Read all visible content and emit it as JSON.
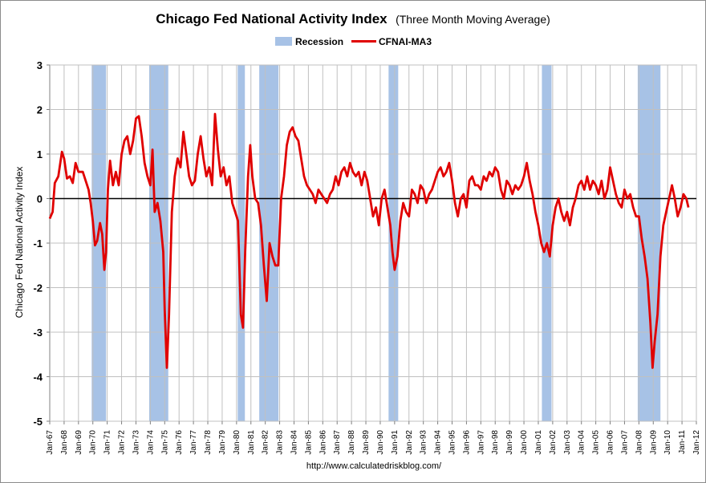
{
  "chart_data": {
    "type": "line",
    "title": "Chicago Fed National Activity Index",
    "subtitle": "(Three Month Moving Average)",
    "ylabel": "Chicago Fed National Activity Index",
    "xlabel": "",
    "source": "http://www.calculatedriskblog.com/",
    "ylim": [
      -5,
      3
    ],
    "yticks": [
      3,
      2,
      1,
      0,
      -1,
      -2,
      -3,
      -4,
      -5
    ],
    "xlim": [
      1967,
      2012
    ],
    "x_tick_labels": [
      "Jan-67",
      "Jan-68",
      "Jan-69",
      "Jan-70",
      "Jan-71",
      "Jan-72",
      "Jan-73",
      "Jan-74",
      "Jan-75",
      "Jan-76",
      "Jan-77",
      "Jan-78",
      "Jan-79",
      "Jan-80",
      "Jan-81",
      "Jan-82",
      "Jan-83",
      "Jan-84",
      "Jan-85",
      "Jan-86",
      "Jan-87",
      "Jan-88",
      "Jan-89",
      "Jan-90",
      "Jan-91",
      "Jan-92",
      "Jan-93",
      "Jan-94",
      "Jan-95",
      "Jan-96",
      "Jan-97",
      "Jan-98",
      "Jan-99",
      "Jan-00",
      "Jan-01",
      "Jan-02",
      "Jan-03",
      "Jan-04",
      "Jan-05",
      "Jan-06",
      "Jan-07",
      "Jan-08",
      "Jan-09",
      "Jan-10",
      "Jan-11",
      "Jan-12"
    ],
    "grid": true,
    "legend_position": "top-center",
    "legend": [
      {
        "name": "Recession",
        "kind": "area",
        "color": "#a7c2e6"
      },
      {
        "name": "CFNAI-MA3",
        "kind": "line",
        "color": "#e00000"
      }
    ],
    "recessions": [
      {
        "start": 1969.92,
        "end": 1970.92
      },
      {
        "start": 1973.92,
        "end": 1975.25
      },
      {
        "start": 1980.08,
        "end": 1980.58
      },
      {
        "start": 1981.58,
        "end": 1982.92
      },
      {
        "start": 1990.58,
        "end": 1991.25
      },
      {
        "start": 2001.25,
        "end": 2001.92
      },
      {
        "start": 2007.92,
        "end": 2009.5
      }
    ],
    "series": [
      {
        "name": "CFNAI-MA3",
        "color": "#e00000",
        "points": [
          [
            1967.0,
            -0.45
          ],
          [
            1967.2,
            -0.3
          ],
          [
            1967.35,
            0.35
          ],
          [
            1967.6,
            0.5
          ],
          [
            1967.85,
            1.05
          ],
          [
            1968.0,
            0.9
          ],
          [
            1968.2,
            0.45
          ],
          [
            1968.4,
            0.5
          ],
          [
            1968.6,
            0.35
          ],
          [
            1968.8,
            0.8
          ],
          [
            1969.0,
            0.6
          ],
          [
            1969.3,
            0.6
          ],
          [
            1969.5,
            0.4
          ],
          [
            1969.7,
            0.2
          ],
          [
            1969.85,
            -0.1
          ],
          [
            1970.0,
            -0.5
          ],
          [
            1970.15,
            -1.05
          ],
          [
            1970.3,
            -0.95
          ],
          [
            1970.5,
            -0.55
          ],
          [
            1970.65,
            -0.8
          ],
          [
            1970.8,
            -1.6
          ],
          [
            1970.92,
            -1.2
          ],
          [
            1971.05,
            0.2
          ],
          [
            1971.2,
            0.85
          ],
          [
            1971.4,
            0.3
          ],
          [
            1971.6,
            0.6
          ],
          [
            1971.8,
            0.3
          ],
          [
            1972.0,
            1.0
          ],
          [
            1972.2,
            1.3
          ],
          [
            1972.4,
            1.4
          ],
          [
            1972.6,
            1.0
          ],
          [
            1972.8,
            1.3
          ],
          [
            1973.0,
            1.8
          ],
          [
            1973.2,
            1.85
          ],
          [
            1973.4,
            1.4
          ],
          [
            1973.6,
            0.8
          ],
          [
            1973.8,
            0.5
          ],
          [
            1974.0,
            0.3
          ],
          [
            1974.15,
            1.1
          ],
          [
            1974.3,
            -0.3
          ],
          [
            1974.5,
            -0.1
          ],
          [
            1974.7,
            -0.5
          ],
          [
            1974.9,
            -1.2
          ],
          [
            1975.0,
            -2.5
          ],
          [
            1975.15,
            -3.8
          ],
          [
            1975.3,
            -2.6
          ],
          [
            1975.5,
            -0.3
          ],
          [
            1975.7,
            0.5
          ],
          [
            1975.9,
            0.9
          ],
          [
            1976.1,
            0.7
          ],
          [
            1976.3,
            1.5
          ],
          [
            1976.5,
            1.0
          ],
          [
            1976.7,
            0.5
          ],
          [
            1976.9,
            0.3
          ],
          [
            1977.1,
            0.4
          ],
          [
            1977.3,
            1.0
          ],
          [
            1977.5,
            1.4
          ],
          [
            1977.7,
            0.9
          ],
          [
            1977.9,
            0.5
          ],
          [
            1978.1,
            0.7
          ],
          [
            1978.3,
            0.3
          ],
          [
            1978.5,
            1.9
          ],
          [
            1978.7,
            1.1
          ],
          [
            1978.9,
            0.5
          ],
          [
            1979.1,
            0.7
          ],
          [
            1979.3,
            0.3
          ],
          [
            1979.5,
            0.5
          ],
          [
            1979.7,
            -0.1
          ],
          [
            1979.9,
            -0.3
          ],
          [
            1980.1,
            -0.5
          ],
          [
            1980.3,
            -2.6
          ],
          [
            1980.45,
            -2.9
          ],
          [
            1980.6,
            -1.2
          ],
          [
            1980.8,
            0.5
          ],
          [
            1980.95,
            1.2
          ],
          [
            1981.1,
            0.5
          ],
          [
            1981.3,
            0.0
          ],
          [
            1981.5,
            -0.1
          ],
          [
            1981.7,
            -0.6
          ],
          [
            1981.9,
            -1.5
          ],
          [
            1982.1,
            -2.3
          ],
          [
            1982.3,
            -1.0
          ],
          [
            1982.5,
            -1.3
          ],
          [
            1982.7,
            -1.5
          ],
          [
            1982.9,
            -1.5
          ],
          [
            1983.1,
            0.0
          ],
          [
            1983.3,
            0.5
          ],
          [
            1983.5,
            1.2
          ],
          [
            1983.7,
            1.5
          ],
          [
            1983.9,
            1.6
          ],
          [
            1984.1,
            1.4
          ],
          [
            1984.3,
            1.3
          ],
          [
            1984.5,
            0.9
          ],
          [
            1984.7,
            0.5
          ],
          [
            1984.9,
            0.3
          ],
          [
            1985.1,
            0.2
          ],
          [
            1985.3,
            0.1
          ],
          [
            1985.5,
            -0.1
          ],
          [
            1985.7,
            0.2
          ],
          [
            1985.9,
            0.1
          ],
          [
            1986.1,
            0.0
          ],
          [
            1986.3,
            -0.1
          ],
          [
            1986.5,
            0.1
          ],
          [
            1986.7,
            0.2
          ],
          [
            1986.9,
            0.5
          ],
          [
            1987.1,
            0.3
          ],
          [
            1987.3,
            0.6
          ],
          [
            1987.5,
            0.7
          ],
          [
            1987.7,
            0.5
          ],
          [
            1987.9,
            0.8
          ],
          [
            1988.1,
            0.6
          ],
          [
            1988.3,
            0.5
          ],
          [
            1988.5,
            0.6
          ],
          [
            1988.7,
            0.3
          ],
          [
            1988.9,
            0.6
          ],
          [
            1989.1,
            0.4
          ],
          [
            1989.3,
            0.0
          ],
          [
            1989.5,
            -0.4
          ],
          [
            1989.7,
            -0.2
          ],
          [
            1989.9,
            -0.6
          ],
          [
            1990.1,
            0.0
          ],
          [
            1990.3,
            0.2
          ],
          [
            1990.5,
            -0.2
          ],
          [
            1990.7,
            -0.6
          ],
          [
            1990.85,
            -1.2
          ],
          [
            1991.0,
            -1.6
          ],
          [
            1991.2,
            -1.3
          ],
          [
            1991.4,
            -0.5
          ],
          [
            1991.6,
            -0.1
          ],
          [
            1991.8,
            -0.3
          ],
          [
            1992.0,
            -0.4
          ],
          [
            1992.2,
            0.2
          ],
          [
            1992.4,
            0.1
          ],
          [
            1992.6,
            -0.1
          ],
          [
            1992.8,
            0.3
          ],
          [
            1993.0,
            0.2
          ],
          [
            1993.2,
            -0.1
          ],
          [
            1993.4,
            0.1
          ],
          [
            1993.6,
            0.2
          ],
          [
            1993.8,
            0.4
          ],
          [
            1994.0,
            0.6
          ],
          [
            1994.2,
            0.7
          ],
          [
            1994.4,
            0.5
          ],
          [
            1994.6,
            0.6
          ],
          [
            1994.8,
            0.8
          ],
          [
            1995.0,
            0.4
          ],
          [
            1995.2,
            -0.1
          ],
          [
            1995.4,
            -0.4
          ],
          [
            1995.6,
            0.0
          ],
          [
            1995.8,
            0.1
          ],
          [
            1996.0,
            -0.2
          ],
          [
            1996.2,
            0.4
          ],
          [
            1996.4,
            0.5
          ],
          [
            1996.6,
            0.3
          ],
          [
            1996.8,
            0.3
          ],
          [
            1997.0,
            0.2
          ],
          [
            1997.2,
            0.5
          ],
          [
            1997.4,
            0.4
          ],
          [
            1997.6,
            0.6
          ],
          [
            1997.8,
            0.5
          ],
          [
            1998.0,
            0.7
          ],
          [
            1998.2,
            0.6
          ],
          [
            1998.4,
            0.2
          ],
          [
            1998.6,
            0.0
          ],
          [
            1998.8,
            0.4
          ],
          [
            1999.0,
            0.3
          ],
          [
            1999.2,
            0.1
          ],
          [
            1999.4,
            0.3
          ],
          [
            1999.6,
            0.2
          ],
          [
            1999.8,
            0.3
          ],
          [
            2000.0,
            0.5
          ],
          [
            2000.2,
            0.8
          ],
          [
            2000.4,
            0.4
          ],
          [
            2000.6,
            0.1
          ],
          [
            2000.8,
            -0.3
          ],
          [
            2001.0,
            -0.6
          ],
          [
            2001.2,
            -1.0
          ],
          [
            2001.4,
            -1.2
          ],
          [
            2001.6,
            -1.0
          ],
          [
            2001.8,
            -1.3
          ],
          [
            2002.0,
            -0.6
          ],
          [
            2002.2,
            -0.2
          ],
          [
            2002.4,
            0.0
          ],
          [
            2002.6,
            -0.3
          ],
          [
            2002.8,
            -0.5
          ],
          [
            2003.0,
            -0.3
          ],
          [
            2003.2,
            -0.6
          ],
          [
            2003.4,
            -0.2
          ],
          [
            2003.6,
            0.0
          ],
          [
            2003.8,
            0.3
          ],
          [
            2004.0,
            0.4
          ],
          [
            2004.2,
            0.2
          ],
          [
            2004.4,
            0.5
          ],
          [
            2004.6,
            0.2
          ],
          [
            2004.8,
            0.4
          ],
          [
            2005.0,
            0.3
          ],
          [
            2005.2,
            0.1
          ],
          [
            2005.4,
            0.4
          ],
          [
            2005.6,
            0.0
          ],
          [
            2005.8,
            0.2
          ],
          [
            2006.0,
            0.7
          ],
          [
            2006.2,
            0.4
          ],
          [
            2006.4,
            0.1
          ],
          [
            2006.6,
            -0.1
          ],
          [
            2006.8,
            -0.2
          ],
          [
            2007.0,
            0.2
          ],
          [
            2007.2,
            0.0
          ],
          [
            2007.4,
            0.1
          ],
          [
            2007.6,
            -0.2
          ],
          [
            2007.8,
            -0.4
          ],
          [
            2008.0,
            -0.4
          ],
          [
            2008.2,
            -0.9
          ],
          [
            2008.4,
            -1.3
          ],
          [
            2008.6,
            -1.8
          ],
          [
            2008.8,
            -2.8
          ],
          [
            2008.95,
            -3.8
          ],
          [
            2009.1,
            -3.2
          ],
          [
            2009.3,
            -2.6
          ],
          [
            2009.5,
            -1.3
          ],
          [
            2009.7,
            -0.6
          ],
          [
            2009.9,
            -0.3
          ],
          [
            2010.1,
            0.0
          ],
          [
            2010.3,
            0.3
          ],
          [
            2010.5,
            0.0
          ],
          [
            2010.7,
            -0.4
          ],
          [
            2010.9,
            -0.2
          ],
          [
            2011.1,
            0.1
          ],
          [
            2011.3,
            0.0
          ],
          [
            2011.45,
            -0.2
          ]
        ]
      }
    ]
  }
}
